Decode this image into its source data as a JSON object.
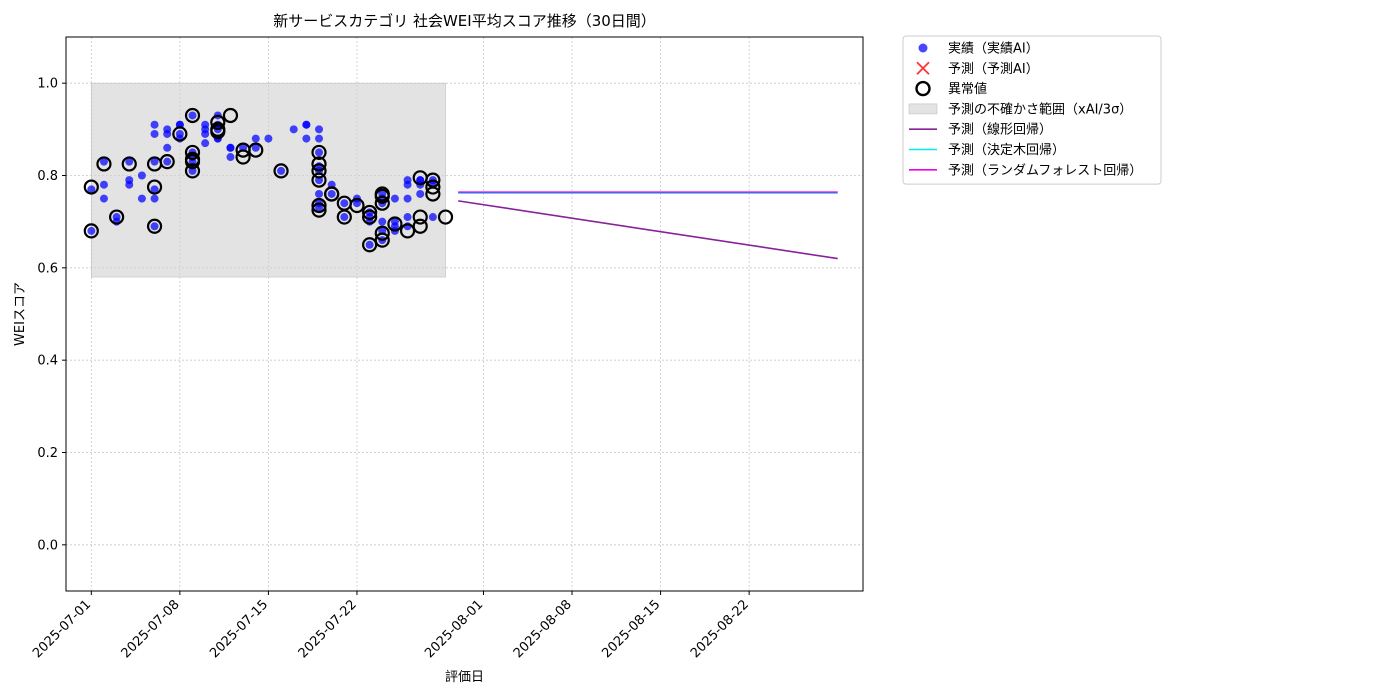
{
  "chart_data": {
    "type": "scatter",
    "title": "新サービスカテゴリ 社会WEI平均スコア推移（30日間）",
    "xlabel": "評価日",
    "ylabel": "WEIスコア",
    "xlim": [
      "2025-06-29",
      "2025-08-31"
    ],
    "ylim": [
      -0.1,
      1.1
    ],
    "x_ticks": [
      "2025-07-01",
      "2025-07-08",
      "2025-07-15",
      "2025-07-22",
      "2025-08-01",
      "2025-08-08",
      "2025-08-15",
      "2025-08-22"
    ],
    "y_ticks": [
      "0.0",
      "0.2",
      "0.4",
      "0.6",
      "0.8",
      "1.0"
    ],
    "grid": true,
    "legend_position": "outside-top-right",
    "series": [
      {
        "name": "実績（実績AI）",
        "kind": "scatter",
        "color": "#0000ff",
        "points": [
          [
            "2025-07-01",
            0.68
          ],
          [
            "2025-07-01",
            0.77
          ],
          [
            "2025-07-02",
            0.75
          ],
          [
            "2025-07-02",
            0.78
          ],
          [
            "2025-07-02",
            0.83
          ],
          [
            "2025-07-03",
            0.71
          ],
          [
            "2025-07-03",
            0.7
          ],
          [
            "2025-07-04",
            0.78
          ],
          [
            "2025-07-04",
            0.79
          ],
          [
            "2025-07-04",
            0.83
          ],
          [
            "2025-07-05",
            0.75
          ],
          [
            "2025-07-05",
            0.8
          ],
          [
            "2025-07-06",
            0.75
          ],
          [
            "2025-07-06",
            0.77
          ],
          [
            "2025-07-06",
            0.69
          ],
          [
            "2025-07-06",
            0.83
          ],
          [
            "2025-07-06",
            0.91
          ],
          [
            "2025-07-06",
            0.89
          ],
          [
            "2025-07-07",
            0.9
          ],
          [
            "2025-07-07",
            0.86
          ],
          [
            "2025-07-07",
            0.89
          ],
          [
            "2025-07-07",
            0.83
          ],
          [
            "2025-07-08",
            0.91
          ],
          [
            "2025-07-08",
            0.89
          ],
          [
            "2025-07-08",
            0.91
          ],
          [
            "2025-07-08",
            0.88
          ],
          [
            "2025-07-09",
            0.84
          ],
          [
            "2025-07-09",
            0.81
          ],
          [
            "2025-07-09",
            0.83
          ],
          [
            "2025-07-09",
            0.85
          ],
          [
            "2025-07-09",
            0.93
          ],
          [
            "2025-07-10",
            0.87
          ],
          [
            "2025-07-10",
            0.89
          ],
          [
            "2025-07-10",
            0.9
          ],
          [
            "2025-07-10",
            0.91
          ],
          [
            "2025-07-11",
            0.88
          ],
          [
            "2025-07-11",
            0.91
          ],
          [
            "2025-07-11",
            0.93
          ],
          [
            "2025-07-11",
            0.9
          ],
          [
            "2025-07-11",
            0.88
          ],
          [
            "2025-07-12",
            0.86
          ],
          [
            "2025-07-12",
            0.84
          ],
          [
            "2025-07-12",
            0.86
          ],
          [
            "2025-07-13",
            0.86
          ],
          [
            "2025-07-14",
            0.86
          ],
          [
            "2025-07-14",
            0.88
          ],
          [
            "2025-07-15",
            0.88
          ],
          [
            "2025-07-16",
            0.81
          ],
          [
            "2025-07-17",
            0.9
          ],
          [
            "2025-07-18",
            0.88
          ],
          [
            "2025-07-18",
            0.91
          ],
          [
            "2025-07-18",
            0.91
          ],
          [
            "2025-07-19",
            0.9
          ],
          [
            "2025-07-19",
            0.88
          ],
          [
            "2025-07-19",
            0.85
          ],
          [
            "2025-07-19",
            0.82
          ],
          [
            "2025-07-19",
            0.81
          ],
          [
            "2025-07-19",
            0.79
          ],
          [
            "2025-07-19",
            0.76
          ],
          [
            "2025-07-19",
            0.74
          ],
          [
            "2025-07-19",
            0.73
          ],
          [
            "2025-07-20",
            0.78
          ],
          [
            "2025-07-20",
            0.76
          ],
          [
            "2025-07-21",
            0.74
          ],
          [
            "2025-07-21",
            0.71
          ],
          [
            "2025-07-22",
            0.75
          ],
          [
            "2025-07-22",
            0.74
          ],
          [
            "2025-07-23",
            0.72
          ],
          [
            "2025-07-23",
            0.71
          ],
          [
            "2025-07-23",
            0.7
          ],
          [
            "2025-07-23",
            0.65
          ],
          [
            "2025-07-24",
            0.76
          ],
          [
            "2025-07-24",
            0.75
          ],
          [
            "2025-07-24",
            0.74
          ],
          [
            "2025-07-24",
            0.7
          ],
          [
            "2025-07-24",
            0.68
          ],
          [
            "2025-07-24",
            0.66
          ],
          [
            "2025-07-25",
            0.69
          ],
          [
            "2025-07-25",
            0.75
          ],
          [
            "2025-07-25",
            0.7
          ],
          [
            "2025-07-25",
            0.68
          ],
          [
            "2025-07-26",
            0.75
          ],
          [
            "2025-07-26",
            0.79
          ],
          [
            "2025-07-26",
            0.78
          ],
          [
            "2025-07-26",
            0.71
          ],
          [
            "2025-07-26",
            0.69
          ],
          [
            "2025-07-27",
            0.79
          ],
          [
            "2025-07-27",
            0.78
          ],
          [
            "2025-07-27",
            0.76
          ],
          [
            "2025-07-27",
            0.79
          ],
          [
            "2025-07-28",
            0.71
          ],
          [
            "2025-07-28",
            0.78
          ],
          [
            "2025-07-28",
            0.79
          ]
        ]
      },
      {
        "name": "予測（予測AI）",
        "kind": "scatter-x",
        "color": "#ff0000",
        "points": []
      },
      {
        "name": "異常値",
        "kind": "outlier-ring",
        "color": "#000000",
        "points": [
          [
            "2025-07-01",
            0.68
          ],
          [
            "2025-07-01",
            0.775
          ],
          [
            "2025-07-02",
            0.825
          ],
          [
            "2025-07-03",
            0.71
          ],
          [
            "2025-07-04",
            0.825
          ],
          [
            "2025-07-06",
            0.69
          ],
          [
            "2025-07-06",
            0.775
          ],
          [
            "2025-07-06",
            0.825
          ],
          [
            "2025-07-07",
            0.83
          ],
          [
            "2025-07-08",
            0.89
          ],
          [
            "2025-07-09",
            0.835
          ],
          [
            "2025-07-09",
            0.81
          ],
          [
            "2025-07-09",
            0.83
          ],
          [
            "2025-07-09",
            0.85
          ],
          [
            "2025-07-09",
            0.93
          ],
          [
            "2025-07-11",
            0.895
          ],
          [
            "2025-07-11",
            0.9
          ],
          [
            "2025-07-11",
            0.915
          ],
          [
            "2025-07-12",
            0.93
          ],
          [
            "2025-07-13",
            0.855
          ],
          [
            "2025-07-13",
            0.84
          ],
          [
            "2025-07-14",
            0.855
          ],
          [
            "2025-07-16",
            0.81
          ],
          [
            "2025-07-19",
            0.85
          ],
          [
            "2025-07-19",
            0.825
          ],
          [
            "2025-07-19",
            0.81
          ],
          [
            "2025-07-19",
            0.79
          ],
          [
            "2025-07-19",
            0.735
          ],
          [
            "2025-07-19",
            0.725
          ],
          [
            "2025-07-20",
            0.76
          ],
          [
            "2025-07-20",
            0.76
          ],
          [
            "2025-07-21",
            0.74
          ],
          [
            "2025-07-21",
            0.71
          ],
          [
            "2025-07-22",
            0.735
          ],
          [
            "2025-07-23",
            0.72
          ],
          [
            "2025-07-23",
            0.71
          ],
          [
            "2025-07-23",
            0.65
          ],
          [
            "2025-07-24",
            0.76
          ],
          [
            "2025-07-24",
            0.755
          ],
          [
            "2025-07-24",
            0.74
          ],
          [
            "2025-07-24",
            0.675
          ],
          [
            "2025-07-24",
            0.66
          ],
          [
            "2025-07-25",
            0.695
          ],
          [
            "2025-07-26",
            0.68
          ],
          [
            "2025-07-27",
            0.795
          ],
          [
            "2025-07-27",
            0.71
          ],
          [
            "2025-07-27",
            0.69
          ],
          [
            "2025-07-28",
            0.79
          ],
          [
            "2025-07-28",
            0.775
          ],
          [
            "2025-07-28",
            0.76
          ],
          [
            "2025-07-29",
            0.71
          ]
        ]
      },
      {
        "name": "予測の不確かさ範囲（xAI/3σ）",
        "kind": "band",
        "color": "#d0d0d0",
        "x": [
          "2025-07-01",
          "2025-07-29"
        ],
        "y_range": [
          0.58,
          1.0
        ]
      },
      {
        "name": "予測（線形回帰）",
        "kind": "line",
        "color": "#882299",
        "points": [
          [
            "2025-07-30",
            0.745
          ],
          [
            "2025-08-29",
            0.62
          ]
        ]
      },
      {
        "name": "予測（決定木回帰）",
        "kind": "line",
        "color": "#00eeee",
        "points": [
          [
            "2025-07-30",
            0.762
          ],
          [
            "2025-08-29",
            0.762
          ]
        ]
      },
      {
        "name": "予測（ランダムフォレスト回帰）",
        "kind": "line",
        "color": "#ee00ee",
        "points": [
          [
            "2025-07-30",
            0.764
          ],
          [
            "2025-08-29",
            0.764
          ]
        ]
      }
    ]
  }
}
